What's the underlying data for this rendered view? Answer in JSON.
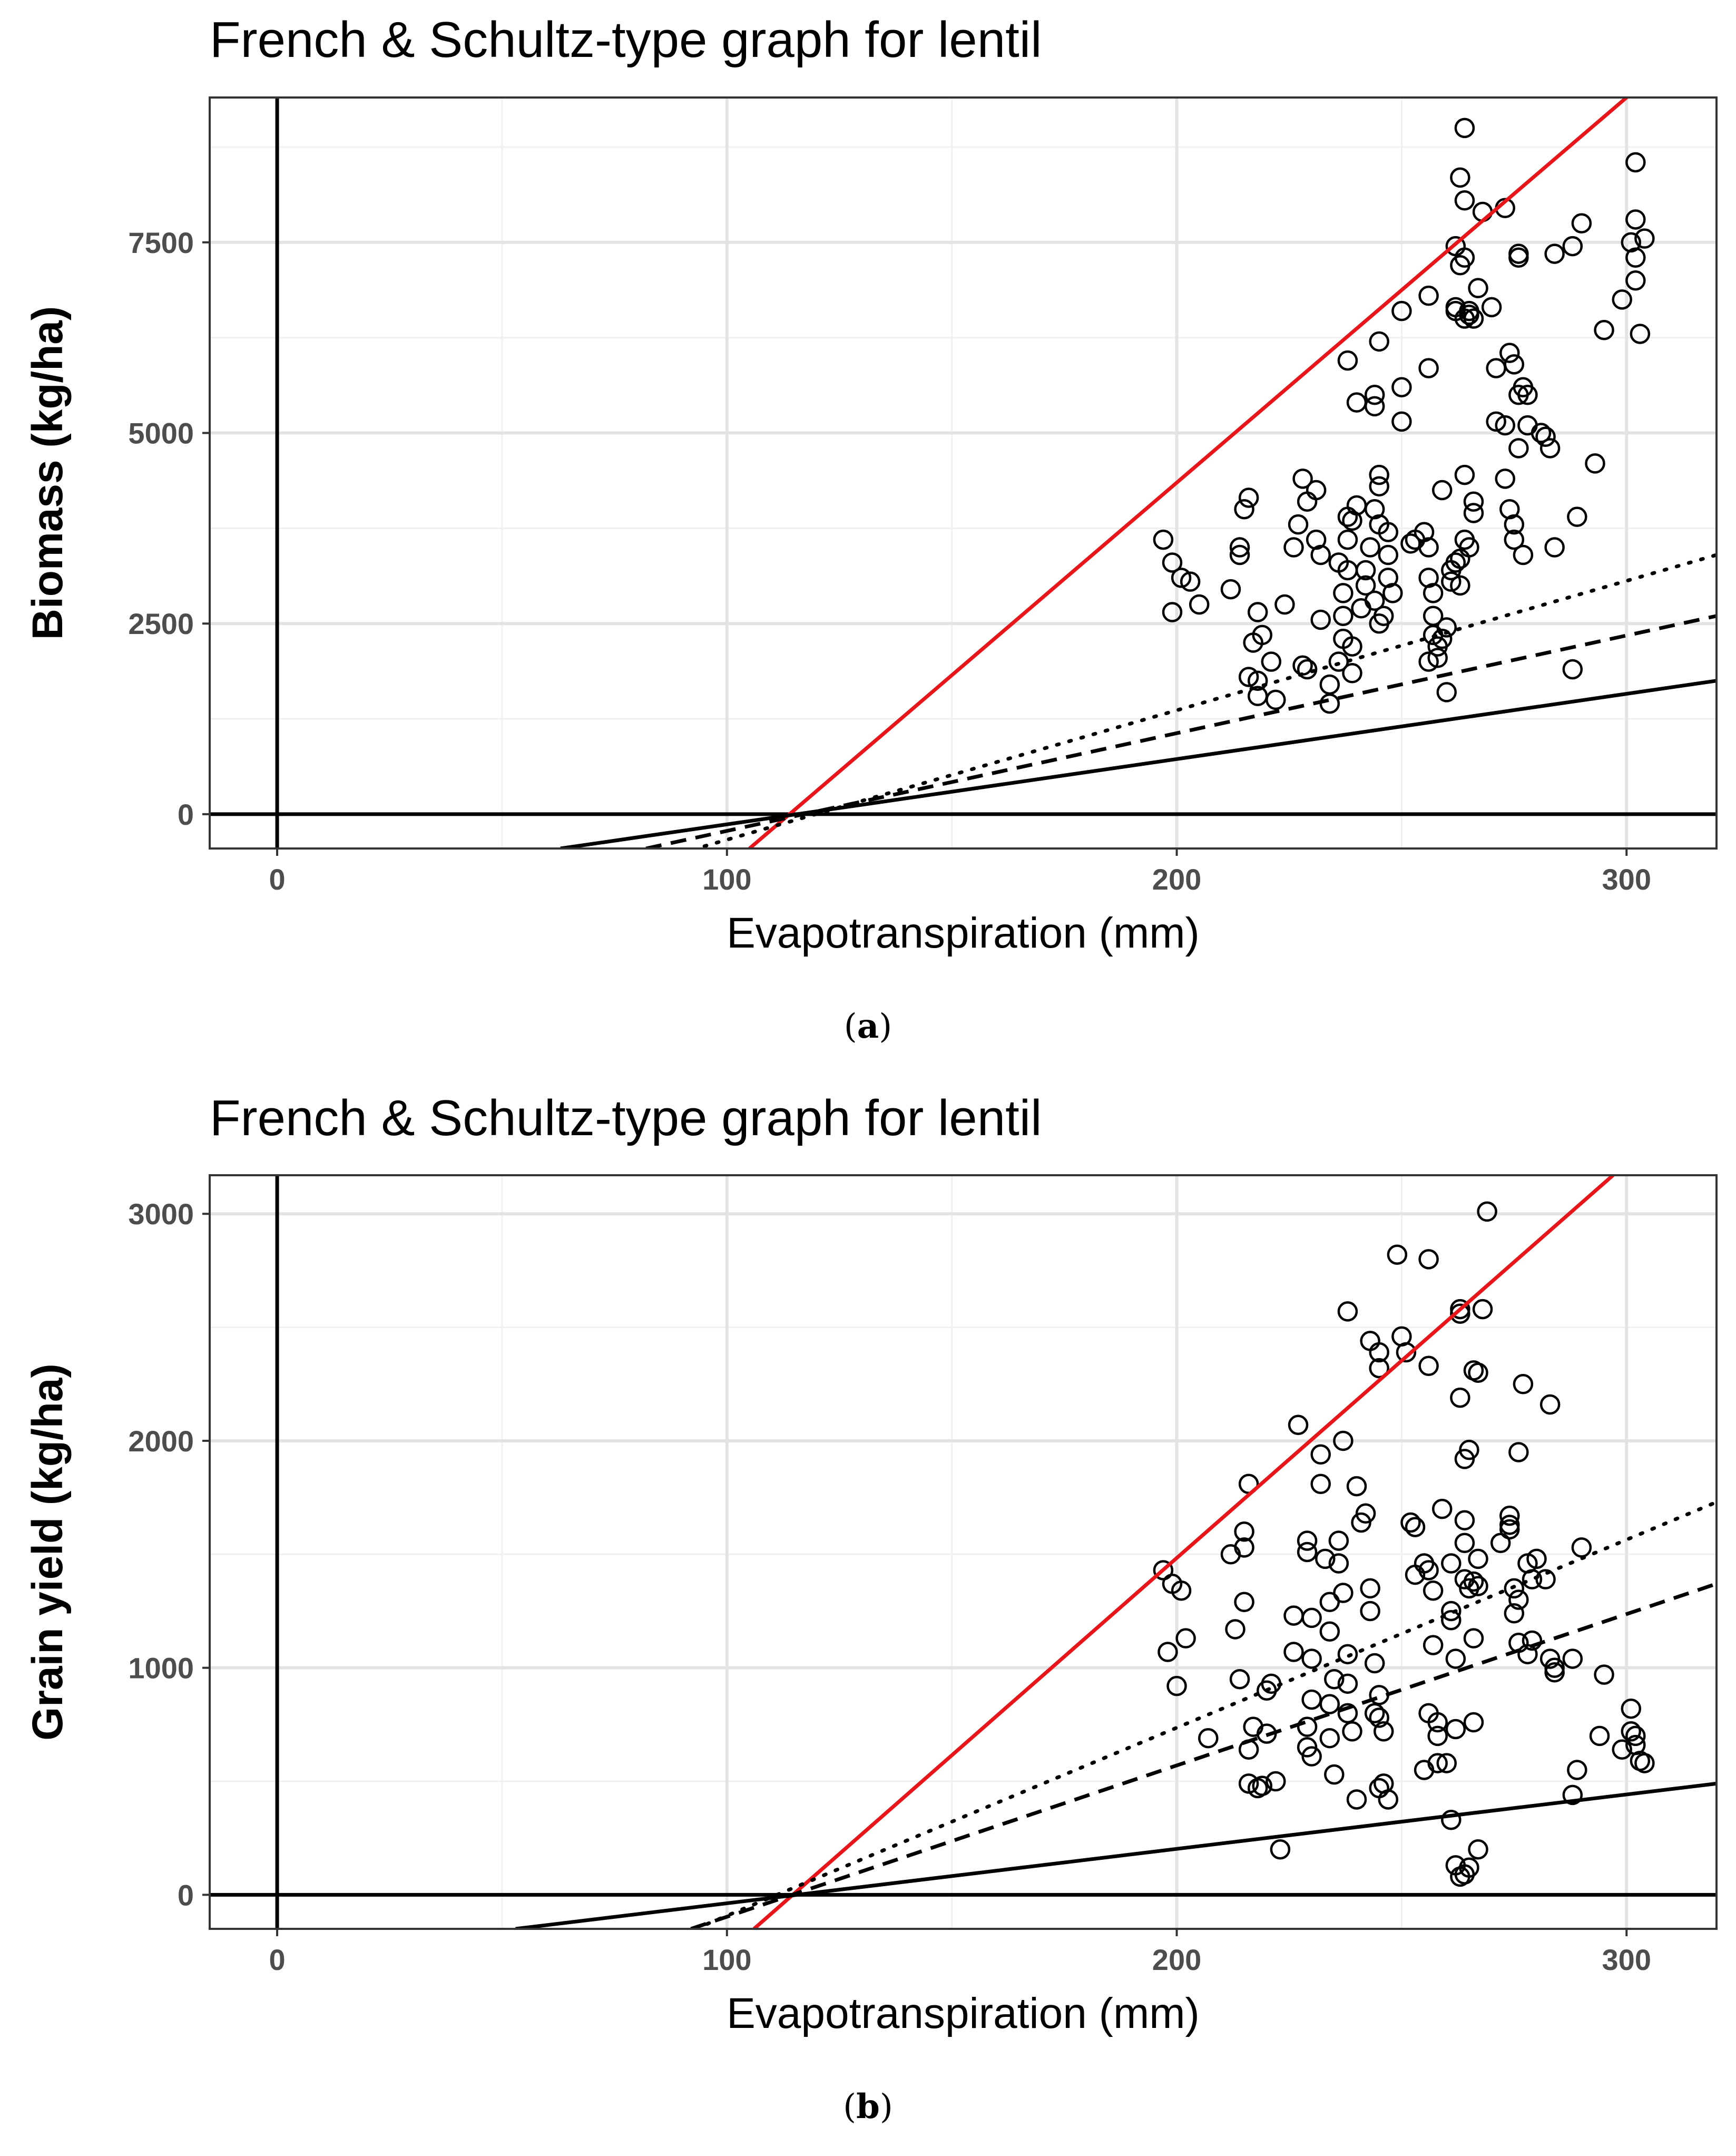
{
  "chart_data": [
    {
      "type": "scatter",
      "panel_label": "a",
      "title": "French & Schultz-type graph for lentil",
      "xlabel": "Evapotranspiration (mm)",
      "ylabel": "Biomass (kg/ha)",
      "xlim": [
        -15,
        320
      ],
      "ylim": [
        -450,
        9400
      ],
      "xticks": [
        0,
        100,
        200,
        300
      ],
      "yticks": [
        0,
        2500,
        5000,
        7500
      ],
      "grid": true,
      "reference_lines": [
        {
          "type": "vertical",
          "x": 0
        },
        {
          "type": "horizontal",
          "y": 0
        }
      ],
      "lines": [
        {
          "name": "red boundary",
          "style": "solid",
          "color": "#e8161b",
          "x": [
            105,
            300
          ],
          "y": [
            -450,
            9400
          ]
        },
        {
          "name": "dotted",
          "style": "dotted",
          "color": "#000000",
          "x": [
            95,
            320
          ],
          "y": [
            -420,
            3400
          ]
        },
        {
          "name": "dashed",
          "style": "dashed",
          "color": "#000000",
          "x": [
            82,
            320
          ],
          "y": [
            -450,
            2600
          ]
        },
        {
          "name": "solid",
          "style": "solid",
          "color": "#000000",
          "x": [
            63,
            320
          ],
          "y": [
            -450,
            1750
          ]
        }
      ],
      "points": [
        [
          197,
          3600
        ],
        [
          199,
          3300
        ],
        [
          201,
          3100
        ],
        [
          203,
          3050
        ],
        [
          199,
          2650
        ],
        [
          205,
          2750
        ],
        [
          212,
          2950
        ],
        [
          214,
          3500
        ],
        [
          214,
          3400
        ],
        [
          215,
          4000
        ],
        [
          216,
          4150
        ],
        [
          218,
          2650
        ],
        [
          219,
          2350
        ],
        [
          217,
          2250
        ],
        [
          216,
          1800
        ],
        [
          218,
          1750
        ],
        [
          218,
          1550
        ],
        [
          222,
          1500
        ],
        [
          221,
          2000
        ],
        [
          224,
          2750
        ],
        [
          226,
          3500
        ],
        [
          227,
          3800
        ],
        [
          228,
          4400
        ],
        [
          229,
          4100
        ],
        [
          231,
          4250
        ],
        [
          231,
          3600
        ],
        [
          232,
          3400
        ],
        [
          228,
          1950
        ],
        [
          229,
          1900
        ],
        [
          232,
          2550
        ],
        [
          234,
          1450
        ],
        [
          234,
          1700
        ],
        [
          236,
          2000
        ],
        [
          237,
          2300
        ],
        [
          237,
          2600
        ],
        [
          237,
          2900
        ],
        [
          238,
          3200
        ],
        [
          236,
          3300
        ],
        [
          238,
          3600
        ],
        [
          238,
          3900
        ],
        [
          239,
          3850
        ],
        [
          240,
          4050
        ],
        [
          242,
          3200
        ],
        [
          242,
          3000
        ],
        [
          243,
          3500
        ],
        [
          241,
          2700
        ],
        [
          239,
          2200
        ],
        [
          239,
          1850
        ],
        [
          244,
          2800
        ],
        [
          244,
          4000
        ],
        [
          245,
          4300
        ],
        [
          245,
          4450
        ],
        [
          245,
          3800
        ],
        [
          247,
          3700
        ],
        [
          247,
          3400
        ],
        [
          247,
          3100
        ],
        [
          248,
          2900
        ],
        [
          246,
          2600
        ],
        [
          245,
          2500
        ],
        [
          240,
          5400
        ],
        [
          244,
          5500
        ],
        [
          244,
          5350
        ],
        [
          245,
          6200
        ],
        [
          238,
          5950
        ],
        [
          250,
          5600
        ],
        [
          250,
          5150
        ],
        [
          252,
          3550
        ],
        [
          253,
          3600
        ],
        [
          255,
          3700
        ],
        [
          256,
          3500
        ],
        [
          256,
          3100
        ],
        [
          257,
          2900
        ],
        [
          257,
          2600
        ],
        [
          257,
          2350
        ],
        [
          258,
          2200
        ],
        [
          256,
          2000
        ],
        [
          258,
          2050
        ],
        [
          259,
          2300
        ],
        [
          260,
          1600
        ],
        [
          260,
          2450
        ],
        [
          262,
          3300
        ],
        [
          261,
          3200
        ],
        [
          261,
          3050
        ],
        [
          263,
          3000
        ],
        [
          263,
          3350
        ],
        [
          264,
          3600
        ],
        [
          265,
          3500
        ],
        [
          266,
          3950
        ],
        [
          266,
          4100
        ],
        [
          264,
          4450
        ],
        [
          259,
          4250
        ],
        [
          262,
          6600
        ],
        [
          262,
          6650
        ],
        [
          264,
          6500
        ],
        [
          265,
          6550
        ],
        [
          265,
          6600
        ],
        [
          266,
          6500
        ],
        [
          267,
          6900
        ],
        [
          256,
          6800
        ],
        [
          250,
          6600
        ],
        [
          256,
          5850
        ],
        [
          270,
          6650
        ],
        [
          271,
          5850
        ],
        [
          274,
          6050
        ],
        [
          275,
          5900
        ],
        [
          276,
          5500
        ],
        [
          278,
          5500
        ],
        [
          277,
          5600
        ],
        [
          278,
          5100
        ],
        [
          281,
          5000
        ],
        [
          282,
          4950
        ],
        [
          283,
          4800
        ],
        [
          271,
          5150
        ],
        [
          273,
          5100
        ],
        [
          276,
          4800
        ],
        [
          274,
          4000
        ],
        [
          275,
          3800
        ],
        [
          275,
          3600
        ],
        [
          277,
          3400
        ],
        [
          273,
          4400
        ],
        [
          284,
          3500
        ],
        [
          289,
          3900
        ],
        [
          293,
          4600
        ],
        [
          288,
          1900
        ],
        [
          262,
          7450
        ],
        [
          263,
          7200
        ],
        [
          264,
          7300
        ],
        [
          263,
          8350
        ],
        [
          264,
          8050
        ],
        [
          264,
          9000
        ],
        [
          268,
          7900
        ],
        [
          273,
          7950
        ],
        [
          276,
          7350
        ],
        [
          276,
          7300
        ],
        [
          284,
          7350
        ],
        [
          288,
          7450
        ],
        [
          290,
          7750
        ],
        [
          295,
          6350
        ],
        [
          299,
          6750
        ],
        [
          302,
          8550
        ],
        [
          302,
          7800
        ],
        [
          301,
          7500
        ],
        [
          302,
          7300
        ],
        [
          302,
          7000
        ],
        [
          303,
          6300
        ],
        [
          304,
          7550
        ]
      ]
    },
    {
      "type": "scatter",
      "panel_label": "b",
      "title": "French & Schultz-type graph for lentil",
      "xlabel": "Evapotranspiration (mm)",
      "ylabel": "Grain yield (kg/ha)",
      "xlim": [
        -15,
        320
      ],
      "ylim": [
        -150,
        3170
      ],
      "xticks": [
        0,
        100,
        200,
        300
      ],
      "yticks": [
        0,
        1000,
        2000,
        3000
      ],
      "grid": true,
      "reference_lines": [
        {
          "type": "vertical",
          "x": 0
        },
        {
          "type": "horizontal",
          "y": 0
        }
      ],
      "lines": [
        {
          "name": "red boundary",
          "style": "solid",
          "color": "#e8161b",
          "x": [
            106,
            297
          ],
          "y": [
            -150,
            3170
          ]
        },
        {
          "name": "dotted",
          "style": "dotted",
          "color": "#000000",
          "x": [
            93,
            320
          ],
          "y": [
            -150,
            1730
          ]
        },
        {
          "name": "dashed",
          "style": "dashed",
          "color": "#000000",
          "x": [
            92,
            320
          ],
          "y": [
            -150,
            1370
          ]
        },
        {
          "name": "solid",
          "style": "solid",
          "color": "#000000",
          "x": [
            53,
            320
          ],
          "y": [
            -150,
            490
          ]
        }
      ],
      "points": [
        [
          197,
          1430
        ],
        [
          199,
          1370
        ],
        [
          201,
          1340
        ],
        [
          202,
          1130
        ],
        [
          198,
          1070
        ],
        [
          200,
          920
        ],
        [
          207,
          690
        ],
        [
          212,
          1500
        ],
        [
          213,
          1170
        ],
        [
          215,
          1530
        ],
        [
          215,
          1600
        ],
        [
          216,
          1810
        ],
        [
          215,
          1290
        ],
        [
          214,
          950
        ],
        [
          216,
          640
        ],
        [
          217,
          740
        ],
        [
          216,
          490
        ],
        [
          218,
          470
        ],
        [
          219,
          480
        ],
        [
          220,
          900
        ],
        [
          221,
          930
        ],
        [
          220,
          710
        ],
        [
          222,
          500
        ],
        [
          223,
          200
        ],
        [
          226,
          1230
        ],
        [
          226,
          1070
        ],
        [
          227,
          2070
        ],
        [
          229,
          1510
        ],
        [
          229,
          1560
        ],
        [
          230,
          1220
        ],
        [
          230,
          1040
        ],
        [
          230,
          860
        ],
        [
          229,
          740
        ],
        [
          229,
          650
        ],
        [
          230,
          610
        ],
        [
          232,
          1940
        ],
        [
          232,
          1810
        ],
        [
          233,
          1480
        ],
        [
          234,
          1290
        ],
        [
          234,
          1160
        ],
        [
          235,
          950
        ],
        [
          234,
          840
        ],
        [
          234,
          690
        ],
        [
          235,
          530
        ],
        [
          236,
          1560
        ],
        [
          236,
          1460
        ],
        [
          237,
          1330
        ],
        [
          238,
          1060
        ],
        [
          238,
          930
        ],
        [
          238,
          800
        ],
        [
          239,
          720
        ],
        [
          237,
          2000
        ],
        [
          238,
          2570
        ],
        [
          240,
          1800
        ],
        [
          241,
          1640
        ],
        [
          242,
          1680
        ],
        [
          243,
          1350
        ],
        [
          243,
          1250
        ],
        [
          244,
          1020
        ],
        [
          245,
          880
        ],
        [
          245,
          780
        ],
        [
          246,
          720
        ],
        [
          246,
          490
        ],
        [
          247,
          420
        ],
        [
          243,
          2440
        ],
        [
          245,
          2390
        ],
        [
          245,
          2320
        ],
        [
          249,
          2820
        ],
        [
          250,
          2460
        ],
        [
          251,
          2390
        ],
        [
          252,
          1640
        ],
        [
          253,
          1620
        ],
        [
          253,
          1410
        ],
        [
          255,
          1460
        ],
        [
          256,
          1430
        ],
        [
          257,
          1340
        ],
        [
          257,
          1100
        ],
        [
          256,
          800
        ],
        [
          258,
          760
        ],
        [
          258,
          700
        ],
        [
          258,
          580
        ],
        [
          259,
          1700
        ],
        [
          261,
          1460
        ],
        [
          261,
          1250
        ],
        [
          261,
          1210
        ],
        [
          262,
          1040
        ],
        [
          262,
          730
        ],
        [
          260,
          580
        ],
        [
          264,
          1550
        ],
        [
          264,
          1390
        ],
        [
          265,
          1350
        ],
        [
          266,
          1380
        ],
        [
          267,
          1360
        ],
        [
          266,
          1130
        ],
        [
          267,
          1480
        ],
        [
          264,
          1650
        ],
        [
          264,
          1920
        ],
        [
          265,
          1960
        ],
        [
          266,
          2310
        ],
        [
          267,
          2300
        ],
        [
          263,
          2190
        ],
        [
          263,
          2580
        ],
        [
          263,
          2560
        ],
        [
          256,
          2800
        ],
        [
          256,
          2330
        ],
        [
          268,
          2580
        ],
        [
          269,
          3010
        ],
        [
          272,
          1550
        ],
        [
          274,
          1630
        ],
        [
          274,
          1670
        ],
        [
          274,
          1610
        ],
        [
          275,
          1350
        ],
        [
          276,
          1300
        ],
        [
          275,
          1240
        ],
        [
          276,
          1110
        ],
        [
          278,
          1460
        ],
        [
          279,
          1390
        ],
        [
          280,
          1480
        ],
        [
          278,
          1060
        ],
        [
          279,
          1120
        ],
        [
          282,
          1390
        ],
        [
          283,
          1040
        ],
        [
          284,
          980
        ],
        [
          284,
          1000
        ],
        [
          276,
          1950
        ],
        [
          277,
          2250
        ],
        [
          283,
          2160
        ],
        [
          288,
          1040
        ],
        [
          289,
          550
        ],
        [
          288,
          440
        ],
        [
          290,
          1530
        ],
        [
          294,
          700
        ],
        [
          295,
          970
        ],
        [
          299,
          640
        ],
        [
          301,
          820
        ],
        [
          301,
          720
        ],
        [
          302,
          700
        ],
        [
          302,
          660
        ],
        [
          303,
          590
        ],
        [
          304,
          580
        ],
        [
          261,
          330
        ],
        [
          262,
          130
        ],
        [
          263,
          80
        ],
        [
          264,
          90
        ],
        [
          265,
          120
        ],
        [
          267,
          200
        ],
        [
          266,
          760
        ],
        [
          255,
          550
        ],
        [
          244,
          800
        ],
        [
          240,
          420
        ],
        [
          245,
          470
        ]
      ]
    }
  ],
  "captions": {
    "a": "a",
    "b": "b"
  }
}
